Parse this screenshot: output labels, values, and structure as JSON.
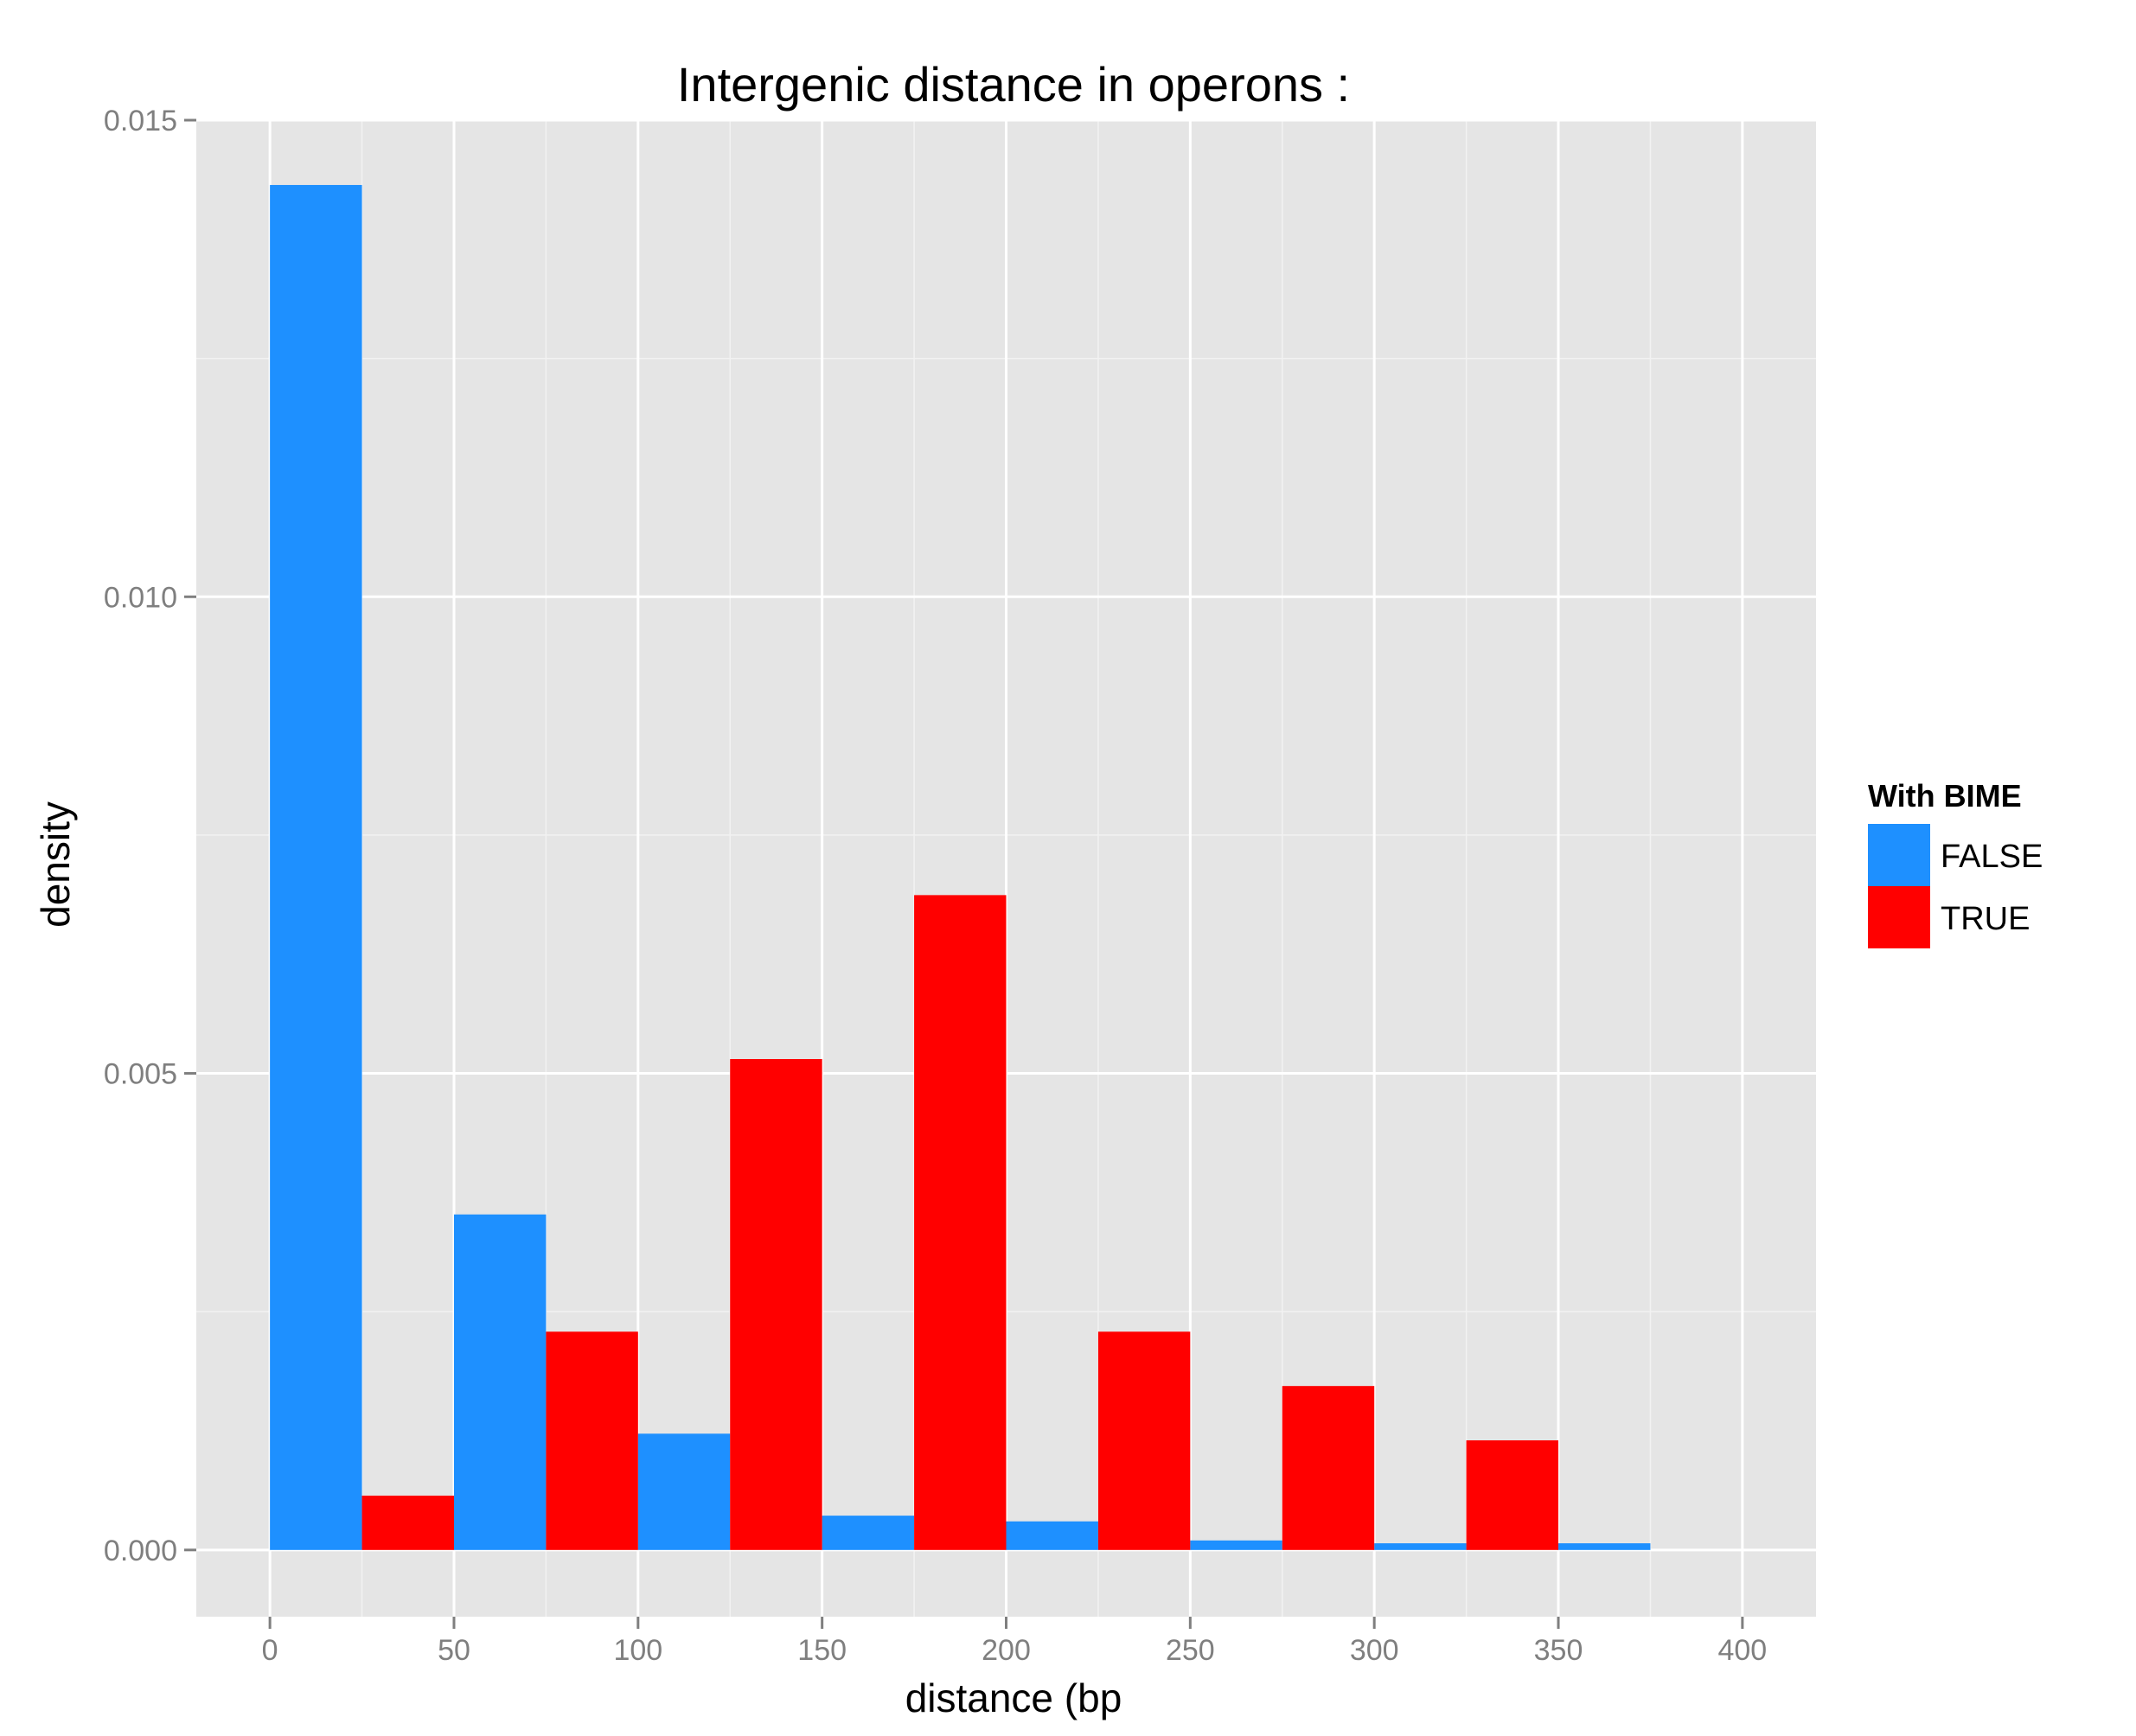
{
  "chart_data": {
    "type": "bar",
    "title": "Intergenic distance in operons :",
    "xlabel": "distance (bp",
    "ylabel": "density",
    "xlim": [
      -20,
      420
    ],
    "ylim": [
      -0.0007,
      0.015
    ],
    "x_ticks": [
      0,
      50,
      100,
      150,
      200,
      250,
      300,
      350,
      400
    ],
    "x_tick_labels": [
      "0",
      "50",
      "100",
      "150",
      "200",
      "250",
      "300",
      "350",
      "400"
    ],
    "y_ticks": [
      0,
      0.005,
      0.01,
      0.015
    ],
    "y_tick_labels": [
      "0.000",
      "0.005",
      "0.010",
      "0.015"
    ],
    "grid": true,
    "bin_width": 25,
    "legend": {
      "title": "With BIME",
      "position": "right"
    },
    "series": [
      {
        "name": "FALSE",
        "color": "#1E90FF",
        "bins": [
          {
            "x0": 0,
            "x1": 25,
            "y": 0.01432
          },
          {
            "x0": 50,
            "x1": 75,
            "y": 0.00352
          },
          {
            "x0": 100,
            "x1": 125,
            "y": 0.00122
          },
          {
            "x0": 150,
            "x1": 175,
            "y": 0.00036
          },
          {
            "x0": 200,
            "x1": 225,
            "y": 0.0003
          },
          {
            "x0": 250,
            "x1": 275,
            "y": 0.0001
          },
          {
            "x0": 300,
            "x1": 325,
            "y": 7e-05
          },
          {
            "x0": 350,
            "x1": 375,
            "y": 7e-05
          }
        ]
      },
      {
        "name": "TRUE",
        "color": "#FF0000",
        "bins": [
          {
            "x0": 25,
            "x1": 50,
            "y": 0.00057
          },
          {
            "x0": 75,
            "x1": 100,
            "y": 0.00229
          },
          {
            "x0": 125,
            "x1": 150,
            "y": 0.00515
          },
          {
            "x0": 175,
            "x1": 200,
            "y": 0.00687
          },
          {
            "x0": 225,
            "x1": 250,
            "y": 0.00229
          },
          {
            "x0": 275,
            "x1": 300,
            "y": 0.00172
          },
          {
            "x0": 325,
            "x1": 350,
            "y": 0.00115
          }
        ]
      }
    ]
  }
}
